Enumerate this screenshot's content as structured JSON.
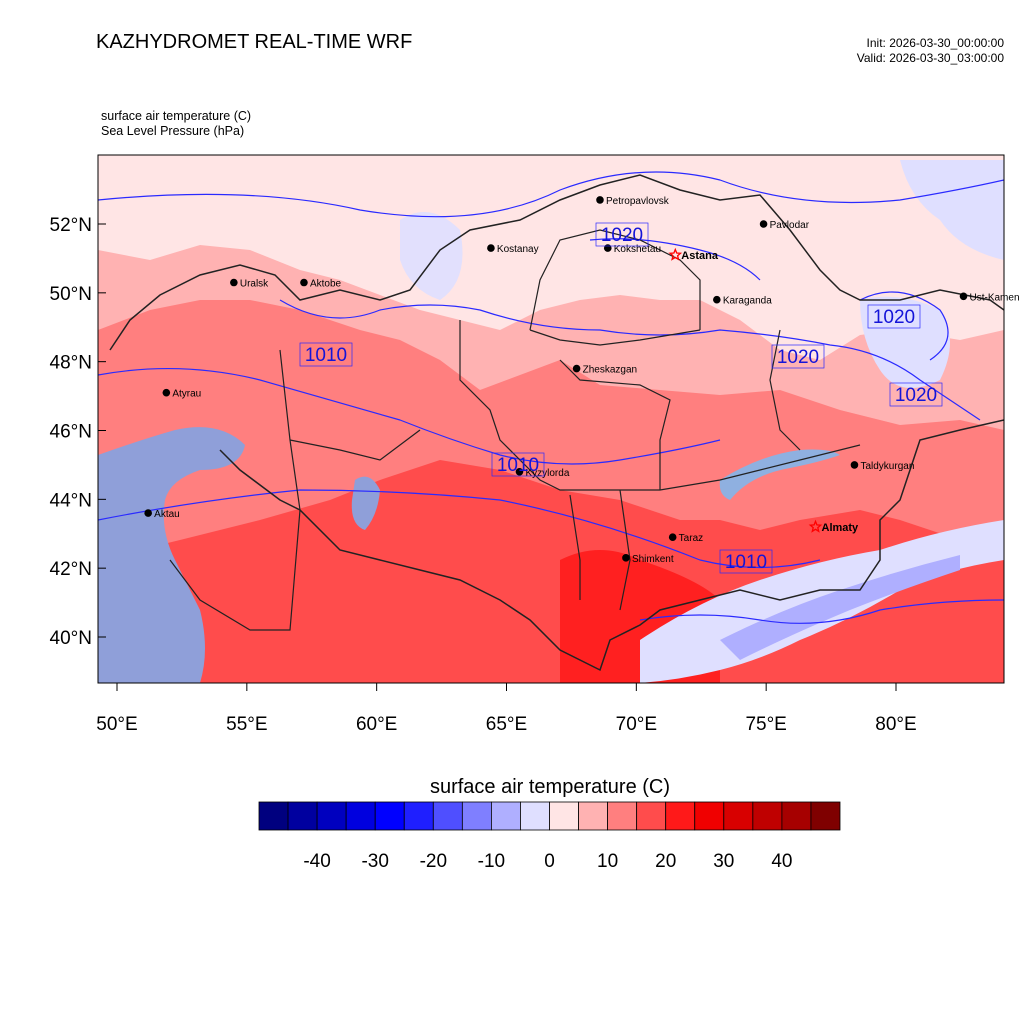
{
  "header": {
    "title": "KAZHYDROMET REAL-TIME WRF",
    "init": "Init: 2026-03-30_00:00:00",
    "valid": "Valid: 2026-03-30_03:00:00"
  },
  "variables": {
    "line1": "surface air temperature   (C)",
    "line2": "Sea Level Pressure   (hPa)"
  },
  "axes": {
    "lat_labels": [
      "52°N",
      "50°N",
      "48°N",
      "46°N",
      "44°N",
      "42°N",
      "40°N"
    ],
    "lon_labels": [
      "50°E",
      "55°E",
      "60°E",
      "65°E",
      "70°E",
      "75°E",
      "80°E"
    ]
  },
  "cities": [
    {
      "name": "Petropavlovsk",
      "lon": 68.6,
      "lat": 52.7,
      "marker": "dot",
      "bold": false
    },
    {
      "name": "Kostanay",
      "lon": 64.4,
      "lat": 51.3,
      "marker": "dot",
      "bold": false
    },
    {
      "name": "Kokshetau",
      "lon": 68.9,
      "lat": 51.3,
      "marker": "dot",
      "bold": false
    },
    {
      "name": "Pavlodar",
      "lon": 74.9,
      "lat": 52.0,
      "marker": "dot",
      "bold": false
    },
    {
      "name": "Uralsk",
      "lon": 54.5,
      "lat": 50.3,
      "marker": "dot",
      "bold": false
    },
    {
      "name": "Astana",
      "lon": 71.5,
      "lat": 51.1,
      "marker": "star",
      "bold": true
    },
    {
      "name": "Ust-Kamen",
      "lon": 82.6,
      "lat": 49.9,
      "marker": "dot",
      "bold": false
    },
    {
      "name": "Aktobe",
      "lon": 57.2,
      "lat": 50.3,
      "marker": "dot",
      "bold": false
    },
    {
      "name": "Karaganda",
      "lon": 73.1,
      "lat": 49.8,
      "marker": "dot",
      "bold": false
    },
    {
      "name": "Atyrau",
      "lon": 51.9,
      "lat": 47.1,
      "marker": "dot",
      "bold": false
    },
    {
      "name": "Zheskazgan",
      "lon": 67.7,
      "lat": 47.8,
      "marker": "dot",
      "bold": false
    },
    {
      "name": "Taldykurgan",
      "lon": 78.4,
      "lat": 45.0,
      "marker": "dot",
      "bold": false
    },
    {
      "name": "Kyzylorda",
      "lon": 65.5,
      "lat": 44.8,
      "marker": "dot",
      "bold": false
    },
    {
      "name": "Aktau",
      "lon": 51.2,
      "lat": 43.6,
      "marker": "dot",
      "bold": false
    },
    {
      "name": "Almaty",
      "lon": 76.9,
      "lat": 43.2,
      "marker": "star",
      "bold": true
    },
    {
      "name": "Taraz",
      "lon": 71.4,
      "lat": 42.9,
      "marker": "dot",
      "bold": false
    },
    {
      "name": "Shimkent",
      "lon": 69.6,
      "lat": 42.3,
      "marker": "dot",
      "bold": false
    }
  ],
  "isobar_labels": [
    "1020",
    "1010",
    "1020",
    "1010",
    "1020",
    "1020",
    "1010"
  ],
  "colorbar": {
    "title": "surface air temperature  (C)",
    "colors": [
      "#00007f",
      "#00009f",
      "#0000bf",
      "#0000df",
      "#0000ff",
      "#1f1fff",
      "#4f4fff",
      "#7f7fff",
      "#afafff",
      "#dfdfff",
      "#ffe5e5",
      "#ffb2b2",
      "#ff7f7f",
      "#ff4c4c",
      "#ff1919",
      "#f00000",
      "#d80000",
      "#bf0000",
      "#a60000",
      "#7f0000"
    ],
    "labels": [
      "-40",
      "-30",
      "-20",
      "-10",
      "0",
      "10",
      "20",
      "30",
      "40"
    ]
  },
  "colors": {
    "isobar": "#2a2aff",
    "border": "#222222",
    "water": "#8f9fd9",
    "river": "#4b7ac9"
  }
}
